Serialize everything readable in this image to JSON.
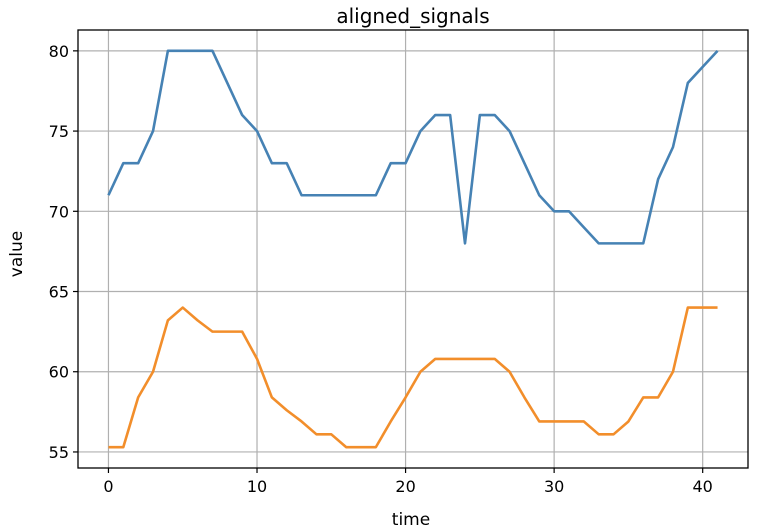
{
  "chart_data": {
    "type": "line",
    "title": "aligned_signals",
    "xlabel": "time",
    "ylabel": "value",
    "xlim": [
      -2.05,
      43.05
    ],
    "ylim": [
      54.0,
      81.3
    ],
    "xticks": [
      0,
      10,
      20,
      30,
      40
    ],
    "yticks": [
      55,
      60,
      65,
      70,
      75,
      80
    ],
    "grid": true,
    "x": [
      0,
      1,
      2,
      3,
      4,
      5,
      6,
      7,
      8,
      9,
      10,
      11,
      12,
      13,
      14,
      15,
      16,
      17,
      18,
      19,
      20,
      21,
      22,
      23,
      24,
      25,
      26,
      27,
      28,
      29,
      30,
      31,
      32,
      33,
      34,
      35,
      36,
      37,
      38,
      39,
      40,
      41
    ],
    "series": [
      {
        "color": "#4682b4",
        "values": [
          71,
          73,
          73,
          75,
          80,
          80,
          80,
          80,
          78,
          76,
          75,
          73,
          73,
          71,
          71,
          71,
          71,
          71,
          71,
          73,
          73,
          75,
          76,
          76,
          68,
          76,
          76,
          75,
          73,
          71,
          70,
          70,
          69,
          68,
          68,
          68,
          68,
          72,
          74,
          78,
          79,
          80
        ]
      },
      {
        "color": "#f28e2b",
        "values": [
          55.3,
          55.3,
          58.4,
          60.0,
          63.2,
          64.0,
          63.2,
          62.5,
          62.5,
          62.5,
          60.8,
          58.4,
          57.6,
          56.9,
          56.1,
          56.1,
          55.3,
          55.3,
          55.3,
          56.9,
          58.4,
          60.0,
          60.8,
          60.8,
          60.8,
          60.8,
          60.8,
          60.0,
          58.4,
          56.9,
          56.9,
          56.9,
          56.9,
          56.1,
          56.1,
          56.9,
          58.4,
          58.4,
          60.0,
          64.0,
          64.0,
          64.0
        ]
      }
    ]
  }
}
